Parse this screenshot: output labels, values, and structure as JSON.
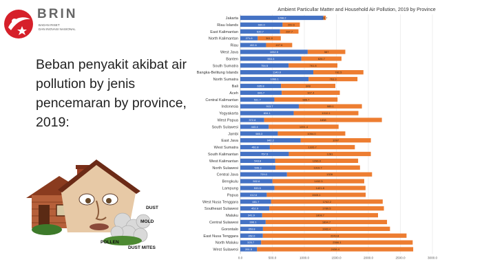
{
  "logo": {
    "name": "BRIN",
    "line1": "BADAN RISET",
    "line2": "DAN INOVASI NASIONAL",
    "color": "#d6202a"
  },
  "slide": {
    "title": "Beban penyakit akibat air pollution by jenis pencemaran by province, 2019:"
  },
  "illustration": {
    "labels": [
      "DUST",
      "MOLD",
      "POLLEN",
      "DUST MITES"
    ]
  },
  "chart_data": {
    "type": "bar",
    "orientation": "horizontal",
    "stacked": true,
    "title": "Ambient Particullar Matter and Household Air Pollution,  2019 by Province",
    "xlim": [
      0,
      3000
    ],
    "x_ticks": [
      "0.0",
      "500.0",
      "1000.0",
      "1500.0",
      "2000.0",
      "2500.0",
      "3000.0"
    ],
    "grid": true,
    "legend": "none",
    "colors": {
      "ambient": "#4472c4",
      "household": "#ed7d31"
    },
    "categories": [
      "Jakarta",
      "Riau Islands",
      "East Kalimantan",
      "North Kalimantan",
      "Riau",
      "West Java",
      "Banten",
      "South Sumatra",
      "Bangka-Belitung Islands",
      "North Sumatra",
      "Bali",
      "Aceh",
      "Central Kalimantan",
      "Indonesia",
      "Yogyakarta",
      "West Papua",
      "South Sulawesi",
      "Jambi",
      "East Java",
      "West Sumatra",
      "South Kalimantan",
      "West Kalimantan",
      "North Sulawesi",
      "Central Java",
      "Bengkulu",
      "Lampung",
      "Papua",
      "West Nusa Tenggara",
      "Southeast Sulawesi",
      "Maluku",
      "Central Sulawesi",
      "Gorontalo",
      "East Nusa Tenggara",
      "North Maluku",
      "West Sulawesi"
    ],
    "series": [
      {
        "values": [
          1298.2,
          660.0,
          620.7,
          271.6,
          402.6,
          1052.5,
          953.3,
          754.5,
          1140.0,
          1066.1,
          635.8,
          646.7,
          531.7,
          913.7,
          834.1,
          372.8,
          443.4,
          585.3,
          942.2,
          461.8,
          757.5,
          543.8,
          549.3,
          729.0,
          502.6,
          533.5,
          412.6,
          481.7,
          452.9,
          341.9,
          396.1,
          353.8,
          352.0,
          325.7,
          261.5
        ],
        "labels": [
          "1298.2",
          "660.0",
          "620.7",
          "271.6",
          "402.6",
          "1052.5",
          "953.3",
          "754.5",
          "1140.0",
          "1066.1",
          "635.8",
          "646.7",
          "531.7",
          "913.7",
          "834.1",
          "372.8",
          "443.4",
          "585.3",
          "942.2",
          "461.8",
          "757.5",
          "543.8",
          "549.3",
          "729.0",
          "502.6",
          "533.5",
          "412.6",
          "481.7",
          "452.9",
          "341.9",
          "396.1",
          "353.8",
          "352.0",
          "325.7",
          "261.5"
        ]
      },
      {
        "values": [
          36.7,
          269.6,
          287.7,
          361.0,
          407.6,
          587,
          626.7,
          761.8,
          782.5,
          763.3,
          848,
          907.4,
          986.7,
          985.1,
          1010.1,
          1838,
          1091.4,
          1054.0,
          1097,
          1326.7,
          1281,
          1296.0,
          1319.7,
          1328,
          1432.3,
          1421.8,
          1545.1,
          1742.2,
          1789.5,
          1808.7,
          1894.7,
          1983.4,
          2243.8,
          2366.1,
          2438.4
        ],
        "labels": [
          "36.7",
          "269.6",
          "287.7",
          "361.0",
          "407.6",
          "587",
          "626.7",
          "761.8",
          "782.5",
          "763.3",
          "848",
          "907.4",
          "986.7",
          "985.1",
          "1010.1",
          "1838",
          "1091.4",
          "1054.0",
          "1097",
          "1326.7",
          "1281",
          "1296.0",
          "1319.7",
          "1328",
          "1432.3",
          "1421.8",
          "1545.1",
          "1742.2",
          "1789.5",
          "1808.7",
          "1894.7",
          "1983.4",
          "2243.8",
          "2366.1",
          "2438.4"
        ]
      }
    ]
  }
}
